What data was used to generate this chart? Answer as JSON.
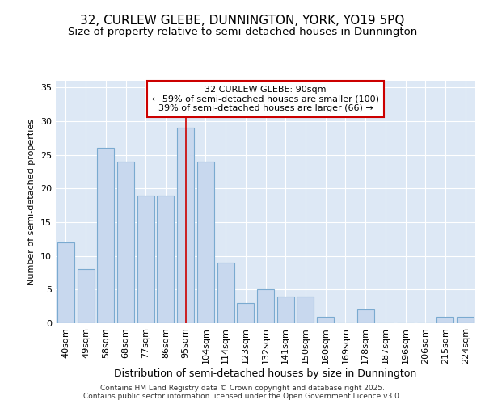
{
  "title1": "32, CURLEW GLEBE, DUNNINGTON, YORK, YO19 5PQ",
  "title2": "Size of property relative to semi-detached houses in Dunnington",
  "xlabel": "Distribution of semi-detached houses by size in Dunnington",
  "ylabel": "Number of semi-detached properties",
  "categories": [
    "40sqm",
    "49sqm",
    "58sqm",
    "68sqm",
    "77sqm",
    "86sqm",
    "95sqm",
    "104sqm",
    "114sqm",
    "123sqm",
    "132sqm",
    "141sqm",
    "150sqm",
    "160sqm",
    "169sqm",
    "178sqm",
    "187sqm",
    "196sqm",
    "206sqm",
    "215sqm",
    "224sqm"
  ],
  "values": [
    12,
    8,
    26,
    24,
    19,
    19,
    29,
    24,
    9,
    3,
    5,
    4,
    4,
    1,
    0,
    2,
    0,
    0,
    0,
    1,
    1
  ],
  "bar_color": "#c8d8ee",
  "bar_edge_color": "#7aaad0",
  "highlight_index": 6,
  "red_line_x": 6,
  "annotation_text": "32 CURLEW GLEBE: 90sqm\n← 59% of semi-detached houses are smaller (100)\n39% of semi-detached houses are larger (66) →",
  "annotation_box_facecolor": "#ffffff",
  "annotation_box_edgecolor": "#cc0000",
  "footer": "Contains HM Land Registry data © Crown copyright and database right 2025.\nContains public sector information licensed under the Open Government Licence v3.0.",
  "ylim": [
    0,
    36
  ],
  "yticks": [
    0,
    5,
    10,
    15,
    20,
    25,
    30,
    35
  ],
  "fig_background": "#ffffff",
  "plot_background": "#dde8f5",
  "grid_color": "#ffffff",
  "title1_fontsize": 11,
  "title2_fontsize": 9.5,
  "xlabel_fontsize": 9,
  "ylabel_fontsize": 8,
  "tick_fontsize": 8,
  "annotation_fontsize": 8,
  "footer_fontsize": 6.5
}
